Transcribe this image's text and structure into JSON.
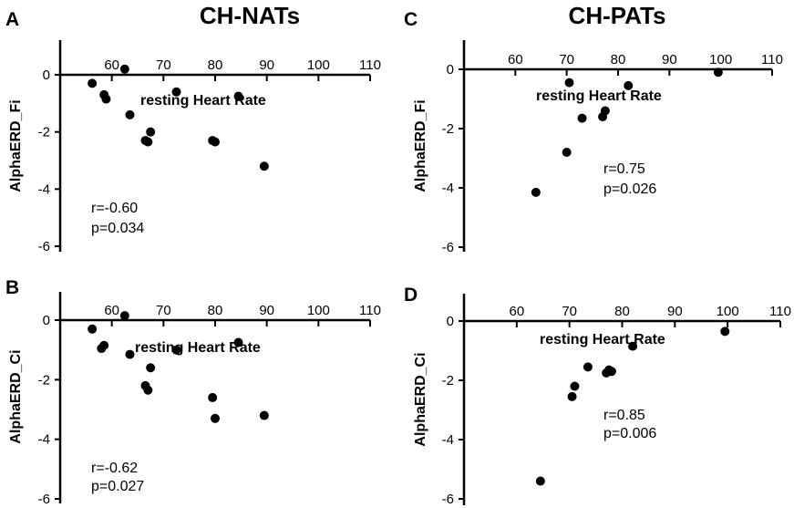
{
  "figure_titles": {
    "left": "CH-NATs",
    "right": "CH-PATs"
  },
  "chart_data": [
    {
      "panel": "A",
      "type": "scatter",
      "xlabel": "resting Heart Rate",
      "ylabel": "AlphaERD_Fi",
      "xlim": [
        50,
        110
      ],
      "ylim": [
        -6,
        1.2
      ],
      "xticks": [
        60,
        70,
        80,
        90,
        100,
        110
      ],
      "xtick_labels": [
        "60",
        "70",
        "80",
        "90",
        "100",
        "110"
      ],
      "yticks": [
        0,
        -2,
        -4,
        -6
      ],
      "ytick_labels": [
        "0",
        "-2",
        "-4",
        "-6"
      ],
      "stat_r": "r=-0.60",
      "stat_p": "p=0.034",
      "points": [
        [
          56.2,
          -0.3
        ],
        [
          62.5,
          0.2
        ],
        [
          58.5,
          -0.7
        ],
        [
          58.9,
          -0.85
        ],
        [
          63.5,
          -1.4
        ],
        [
          72.5,
          -0.6
        ],
        [
          84.5,
          -0.75
        ],
        [
          66.5,
          -2.3
        ],
        [
          67.0,
          -2.35
        ],
        [
          67.5,
          -2.0
        ],
        [
          79.5,
          -2.3
        ],
        [
          80.0,
          -2.35
        ],
        [
          89.5,
          -3.2
        ]
      ]
    },
    {
      "panel": "B",
      "type": "scatter",
      "xlabel": "resting Heart Rate",
      "ylabel": "AlphaERD_Ci",
      "xlim": [
        50,
        110
      ],
      "ylim": [
        -6,
        1.2
      ],
      "xticks": [
        60,
        70,
        80,
        90,
        100,
        110
      ],
      "xtick_labels": [
        "60",
        "70",
        "80",
        "90",
        "100",
        "110"
      ],
      "yticks": [
        0,
        -2,
        -4,
        -6
      ],
      "ytick_labels": [
        "0",
        "-2",
        "-4",
        "-6"
      ],
      "stat_r": "r=-0.62",
      "stat_p": "p=0.027",
      "points": [
        [
          56.2,
          -0.3
        ],
        [
          62.5,
          0.15
        ],
        [
          58.5,
          -0.85
        ],
        [
          58.0,
          -0.95
        ],
        [
          63.5,
          -1.15
        ],
        [
          72.5,
          -1.0
        ],
        [
          84.5,
          -0.75
        ],
        [
          66.5,
          -2.2
        ],
        [
          67.0,
          -2.35
        ],
        [
          67.5,
          -1.6
        ],
        [
          79.5,
          -2.6
        ],
        [
          80.0,
          -3.3
        ],
        [
          89.5,
          -3.2
        ]
      ]
    },
    {
      "panel": "C",
      "type": "scatter",
      "xlabel": "resting Heart Rate",
      "ylabel": "AlphaERD_Fi",
      "xlim": [
        50,
        110
      ],
      "ylim": [
        -6,
        1.2
      ],
      "xticks": [
        60,
        70,
        80,
        90,
        100,
        110
      ],
      "xtick_labels": [
        "60",
        "70",
        "80",
        "90",
        "100",
        "110"
      ],
      "yticks": [
        0,
        -2,
        -4,
        -6
      ],
      "ytick_labels": [
        "0",
        "-2",
        "-4",
        "-6"
      ],
      "stat_r": "r=0.75",
      "stat_p": "p=0.026",
      "points": [
        [
          70.5,
          -0.45
        ],
        [
          99.5,
          -0.1
        ],
        [
          82.0,
          -0.55
        ],
        [
          73.0,
          -1.65
        ],
        [
          77.5,
          -1.4
        ],
        [
          77.0,
          -1.6
        ],
        [
          70.0,
          -2.8
        ],
        [
          64.0,
          -4.15
        ]
      ]
    },
    {
      "panel": "D",
      "type": "scatter",
      "xlabel": "resting Heart Rate",
      "ylabel": "AlphaERD_Ci",
      "xlim": [
        50,
        110
      ],
      "ylim": [
        -6,
        1.2
      ],
      "xticks": [
        60,
        70,
        80,
        90,
        100,
        110
      ],
      "xtick_labels": [
        "60",
        "70",
        "80",
        "90",
        "100",
        "110"
      ],
      "yticks": [
        0,
        -2,
        -4,
        -6
      ],
      "ytick_labels": [
        "0",
        "-2",
        "-4",
        "-6"
      ],
      "stat_r": "r=0.85",
      "stat_p": "p=0.006",
      "points": [
        [
          99.5,
          -0.35
        ],
        [
          82.0,
          -0.85
        ],
        [
          73.5,
          -1.55
        ],
        [
          77.5,
          -1.65
        ],
        [
          78.0,
          -1.7
        ],
        [
          77.0,
          -1.75
        ],
        [
          71.0,
          -2.2
        ],
        [
          70.5,
          -2.55
        ],
        [
          64.5,
          -5.4
        ]
      ]
    }
  ]
}
